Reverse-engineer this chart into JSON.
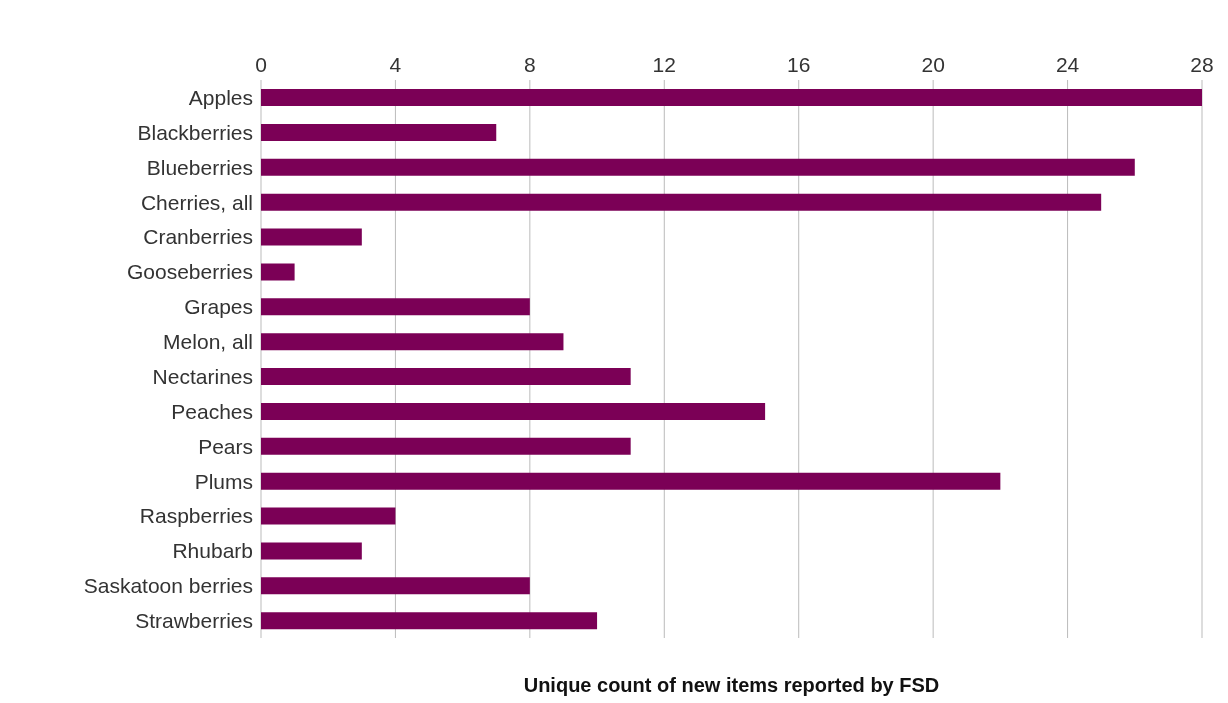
{
  "chart_data": {
    "type": "bar",
    "orientation": "horizontal",
    "xlabel": "Unique count of new items reported by FSD",
    "categories": [
      "Apples",
      "Blackberries",
      "Blueberries",
      "Cherries, all",
      "Cranberries",
      "Gooseberries",
      "Grapes",
      "Melon, all",
      "Nectarines",
      "Peaches",
      "Pears",
      "Plums",
      "Raspberries",
      "Rhubarb",
      "Saskatoon berries",
      "Strawberries"
    ],
    "values": [
      28,
      7,
      26,
      25,
      3,
      1,
      8,
      9,
      11,
      15,
      11,
      22,
      4,
      3,
      8,
      10
    ],
    "color": "#7b0056",
    "xlim": [
      0,
      28
    ],
    "xticks": [
      0,
      4,
      8,
      12,
      16,
      20,
      24,
      28
    ],
    "grid": "x"
  }
}
